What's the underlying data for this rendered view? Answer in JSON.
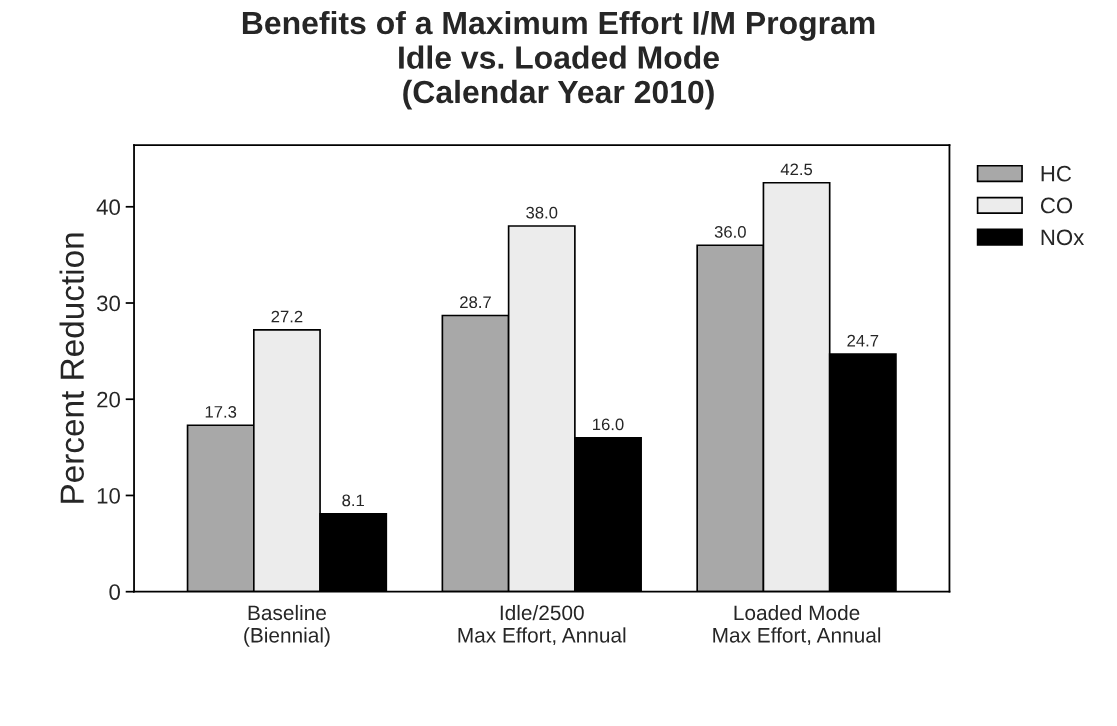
{
  "chart_data": {
    "type": "bar",
    "title": "Benefits of a Maximum Effort I/M Program\nIdle vs. Loaded Mode\n(Calendar Year 2010)",
    "ylabel": "Percent Reduction",
    "categories": [
      "Baseline\n(Biennial)",
      "Idle/2500\nMax Effort, Annual",
      "Loaded Mode\nMax Effort, Annual"
    ],
    "series": [
      {
        "name": "HC",
        "color": "#a8a8a8",
        "values": [
          17.3,
          28.7,
          36.0
        ],
        "value_labels": [
          "17.3",
          "28.7",
          "36.0"
        ]
      },
      {
        "name": "CO",
        "color": "#ececec",
        "values": [
          27.2,
          38.0,
          42.5
        ],
        "value_labels": [
          "27.2",
          "38.0",
          "42.5"
        ]
      },
      {
        "name": "NOx",
        "color": "#000000",
        "values": [
          8.1,
          16.0,
          24.7
        ],
        "value_labels": [
          "8.1",
          "16.0",
          "24.7"
        ]
      }
    ],
    "ylim": [
      0,
      46.4
    ],
    "yticks": [
      0,
      10,
      20,
      30,
      40
    ],
    "legend": "top right",
    "grid": false
  }
}
